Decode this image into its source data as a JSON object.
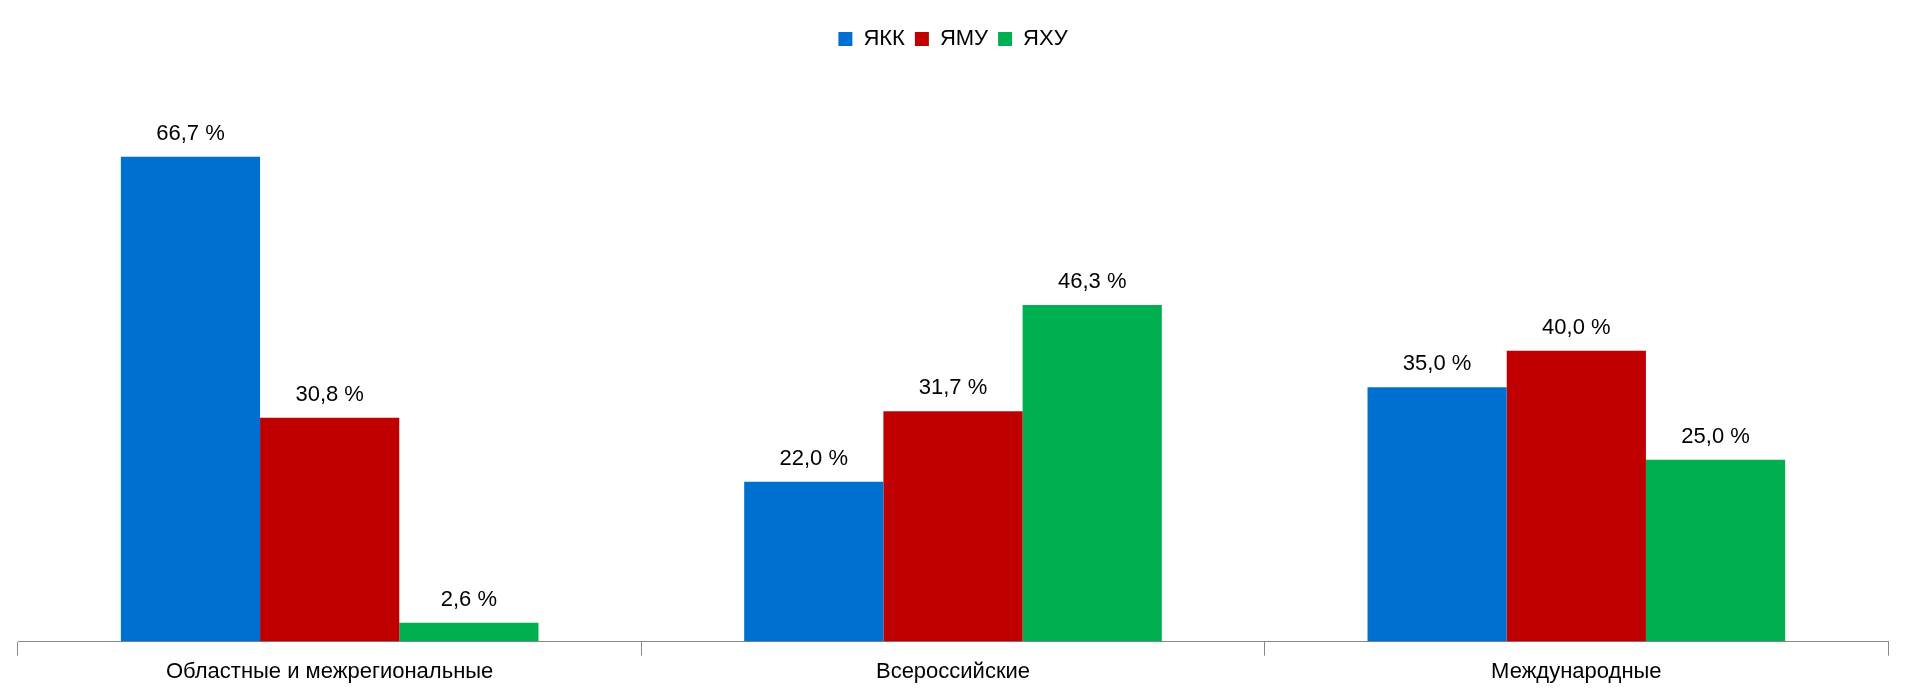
{
  "chart_data": {
    "type": "bar",
    "categories": [
      "Областные и межрегиональные",
      "Всероссийские",
      "Международные"
    ],
    "series": [
      {
        "name": "ЯКК",
        "color": "#0070d0",
        "values": [
          66.7,
          22.0,
          35.0
        ],
        "value_labels": [
          "66,7 %",
          "22,0 %",
          "35,0 %"
        ]
      },
      {
        "name": "ЯМУ",
        "color": "#c00000",
        "values": [
          30.8,
          31.7,
          40.0
        ],
        "value_labels": [
          "30,8 %",
          "31,7 %",
          "40,0 %"
        ]
      },
      {
        "name": "ЯХУ",
        "color": "#00b050",
        "values": [
          2.6,
          46.3,
          25.0
        ],
        "value_labels": [
          "2,6 %",
          "46,3 %",
          "25,0 %"
        ]
      }
    ],
    "grid": false,
    "legend": "top"
  }
}
